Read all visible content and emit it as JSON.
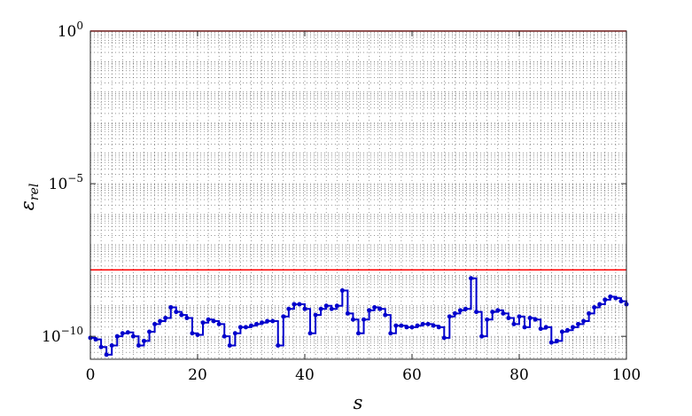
{
  "chart_data": {
    "type": "line",
    "title": "",
    "xlabel": "s",
    "ylabel": "ε_rel",
    "ylabel_main": "ε",
    "ylabel_sub": "rel",
    "xlim": [
      0,
      100
    ],
    "ylim_log10": [
      -10.75,
      0
    ],
    "y_scale": "log",
    "grid": true,
    "x_ticks": [
      0,
      20,
      40,
      60,
      80,
      100
    ],
    "x_tick_labels": [
      "0",
      "20",
      "40",
      "60",
      "80",
      "100"
    ],
    "y_ticks_log10": [
      0,
      -5,
      -10
    ],
    "y_tick_labels": [
      {
        "base": "10",
        "exp": "0"
      },
      {
        "base": "10",
        "exp": "−5"
      },
      {
        "base": "10",
        "exp": "−10"
      }
    ],
    "reference_lines": [
      {
        "y": 1,
        "color": "#ff0000"
      },
      {
        "y": 1.5e-08,
        "color": "#ff0000"
      }
    ],
    "series": [
      {
        "color": "#0000cc",
        "style": "stairs-with-markers",
        "x": [
          0,
          1,
          2,
          3,
          4,
          5,
          6,
          7,
          8,
          9,
          10,
          11,
          12,
          13,
          14,
          15,
          16,
          17,
          18,
          19,
          20,
          21,
          22,
          23,
          24,
          25,
          26,
          27,
          28,
          29,
          30,
          31,
          32,
          33,
          34,
          35,
          36,
          37,
          38,
          39,
          40,
          41,
          42,
          43,
          44,
          45,
          46,
          47,
          48,
          49,
          50,
          51,
          52,
          53,
          54,
          55,
          56,
          57,
          58,
          59,
          60,
          61,
          62,
          63,
          64,
          65,
          66,
          67,
          68,
          69,
          70,
          71,
          72,
          73,
          74,
          75,
          76,
          77,
          78,
          79,
          80,
          81,
          82,
          83,
          84,
          85,
          86,
          87,
          88,
          89,
          90,
          91,
          92,
          93,
          94,
          95,
          96,
          97,
          98,
          99,
          100
        ],
        "log10_y": [
          -10.05,
          -10.1,
          -10.35,
          -10.6,
          -10.3,
          -10.0,
          -9.9,
          -9.87,
          -10.0,
          -10.3,
          -10.15,
          -9.85,
          -9.6,
          -9.5,
          -9.4,
          -9.05,
          -9.2,
          -9.3,
          -9.4,
          -9.9,
          -9.95,
          -9.55,
          -9.45,
          -9.5,
          -9.6,
          -10.0,
          -10.3,
          -9.9,
          -9.7,
          -9.7,
          -9.65,
          -9.6,
          -9.55,
          -9.5,
          -9.5,
          -10.3,
          -9.35,
          -9.1,
          -8.95,
          -8.95,
          -9.1,
          -9.9,
          -9.3,
          -9.1,
          -9.0,
          -9.1,
          -9.0,
          -8.5,
          -9.25,
          -9.45,
          -9.9,
          -9.45,
          -9.15,
          -9.05,
          -9.1,
          -9.3,
          -9.9,
          -9.65,
          -9.65,
          -9.7,
          -9.7,
          -9.65,
          -9.6,
          -9.6,
          -9.65,
          -9.7,
          -10.05,
          -9.35,
          -9.25,
          -9.15,
          -9.1,
          -8.1,
          -9.2,
          -10.0,
          -9.45,
          -9.2,
          -9.15,
          -9.25,
          -9.4,
          -9.6,
          -9.35,
          -9.7,
          -9.4,
          -9.45,
          -9.75,
          -9.7,
          -10.2,
          -10.15,
          -9.85,
          -9.8,
          -9.7,
          -9.6,
          -9.5,
          -9.25,
          -9.05,
          -8.95,
          -8.8,
          -8.7,
          -8.75,
          -8.85,
          -8.95
        ]
      }
    ]
  }
}
